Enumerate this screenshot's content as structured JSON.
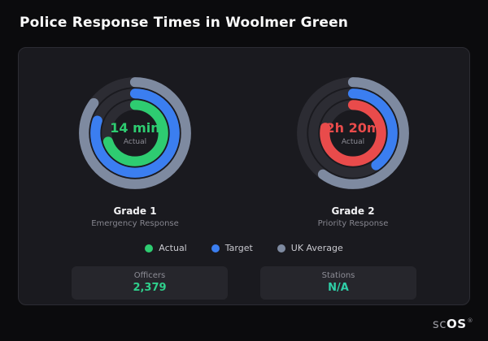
{
  "page": {
    "title": "Police Response Times in Woolmer Green"
  },
  "chart_data": {
    "type": "radial-gauge",
    "track_color": "#2c2c33",
    "gauges": [
      {
        "name": "Grade 1",
        "subtitle": "Emergency Response",
        "center_value": "14 min",
        "center_label": "Actual",
        "value_color": "#2ecc71",
        "rings": [
          {
            "name": "UK Average",
            "color": "#7e8aa0",
            "fraction": 0.85
          },
          {
            "name": "Target",
            "color": "#3b7ef0",
            "fraction": 0.8
          },
          {
            "name": "Actual",
            "color": "#2ecc71",
            "fraction": 0.7
          }
        ]
      },
      {
        "name": "Grade 2",
        "subtitle": "Priority Response",
        "center_value": "2h 20m",
        "center_label": "Actual",
        "value_color": "#e94b4b",
        "rings": [
          {
            "name": "UK Average",
            "color": "#7e8aa0",
            "fraction": 0.6
          },
          {
            "name": "Target",
            "color": "#3b7ef0",
            "fraction": 0.4
          },
          {
            "name": "Actual",
            "color": "#e94b4b",
            "fraction": 0.78
          }
        ]
      }
    ],
    "legend": [
      {
        "label": "Actual",
        "color": "#2ecc71"
      },
      {
        "label": "Target",
        "color": "#3b7ef0"
      },
      {
        "label": "UK Average",
        "color": "#7e8aa0"
      }
    ]
  },
  "stats": [
    {
      "label": "Officers",
      "value": "2,379",
      "value_color": "#2fd08c"
    },
    {
      "label": "Stations",
      "value": "N/A",
      "value_color": "#2fd0a8"
    }
  ],
  "brand": {
    "prefix": "sc",
    "suffix": "OS",
    "registered": "®"
  }
}
